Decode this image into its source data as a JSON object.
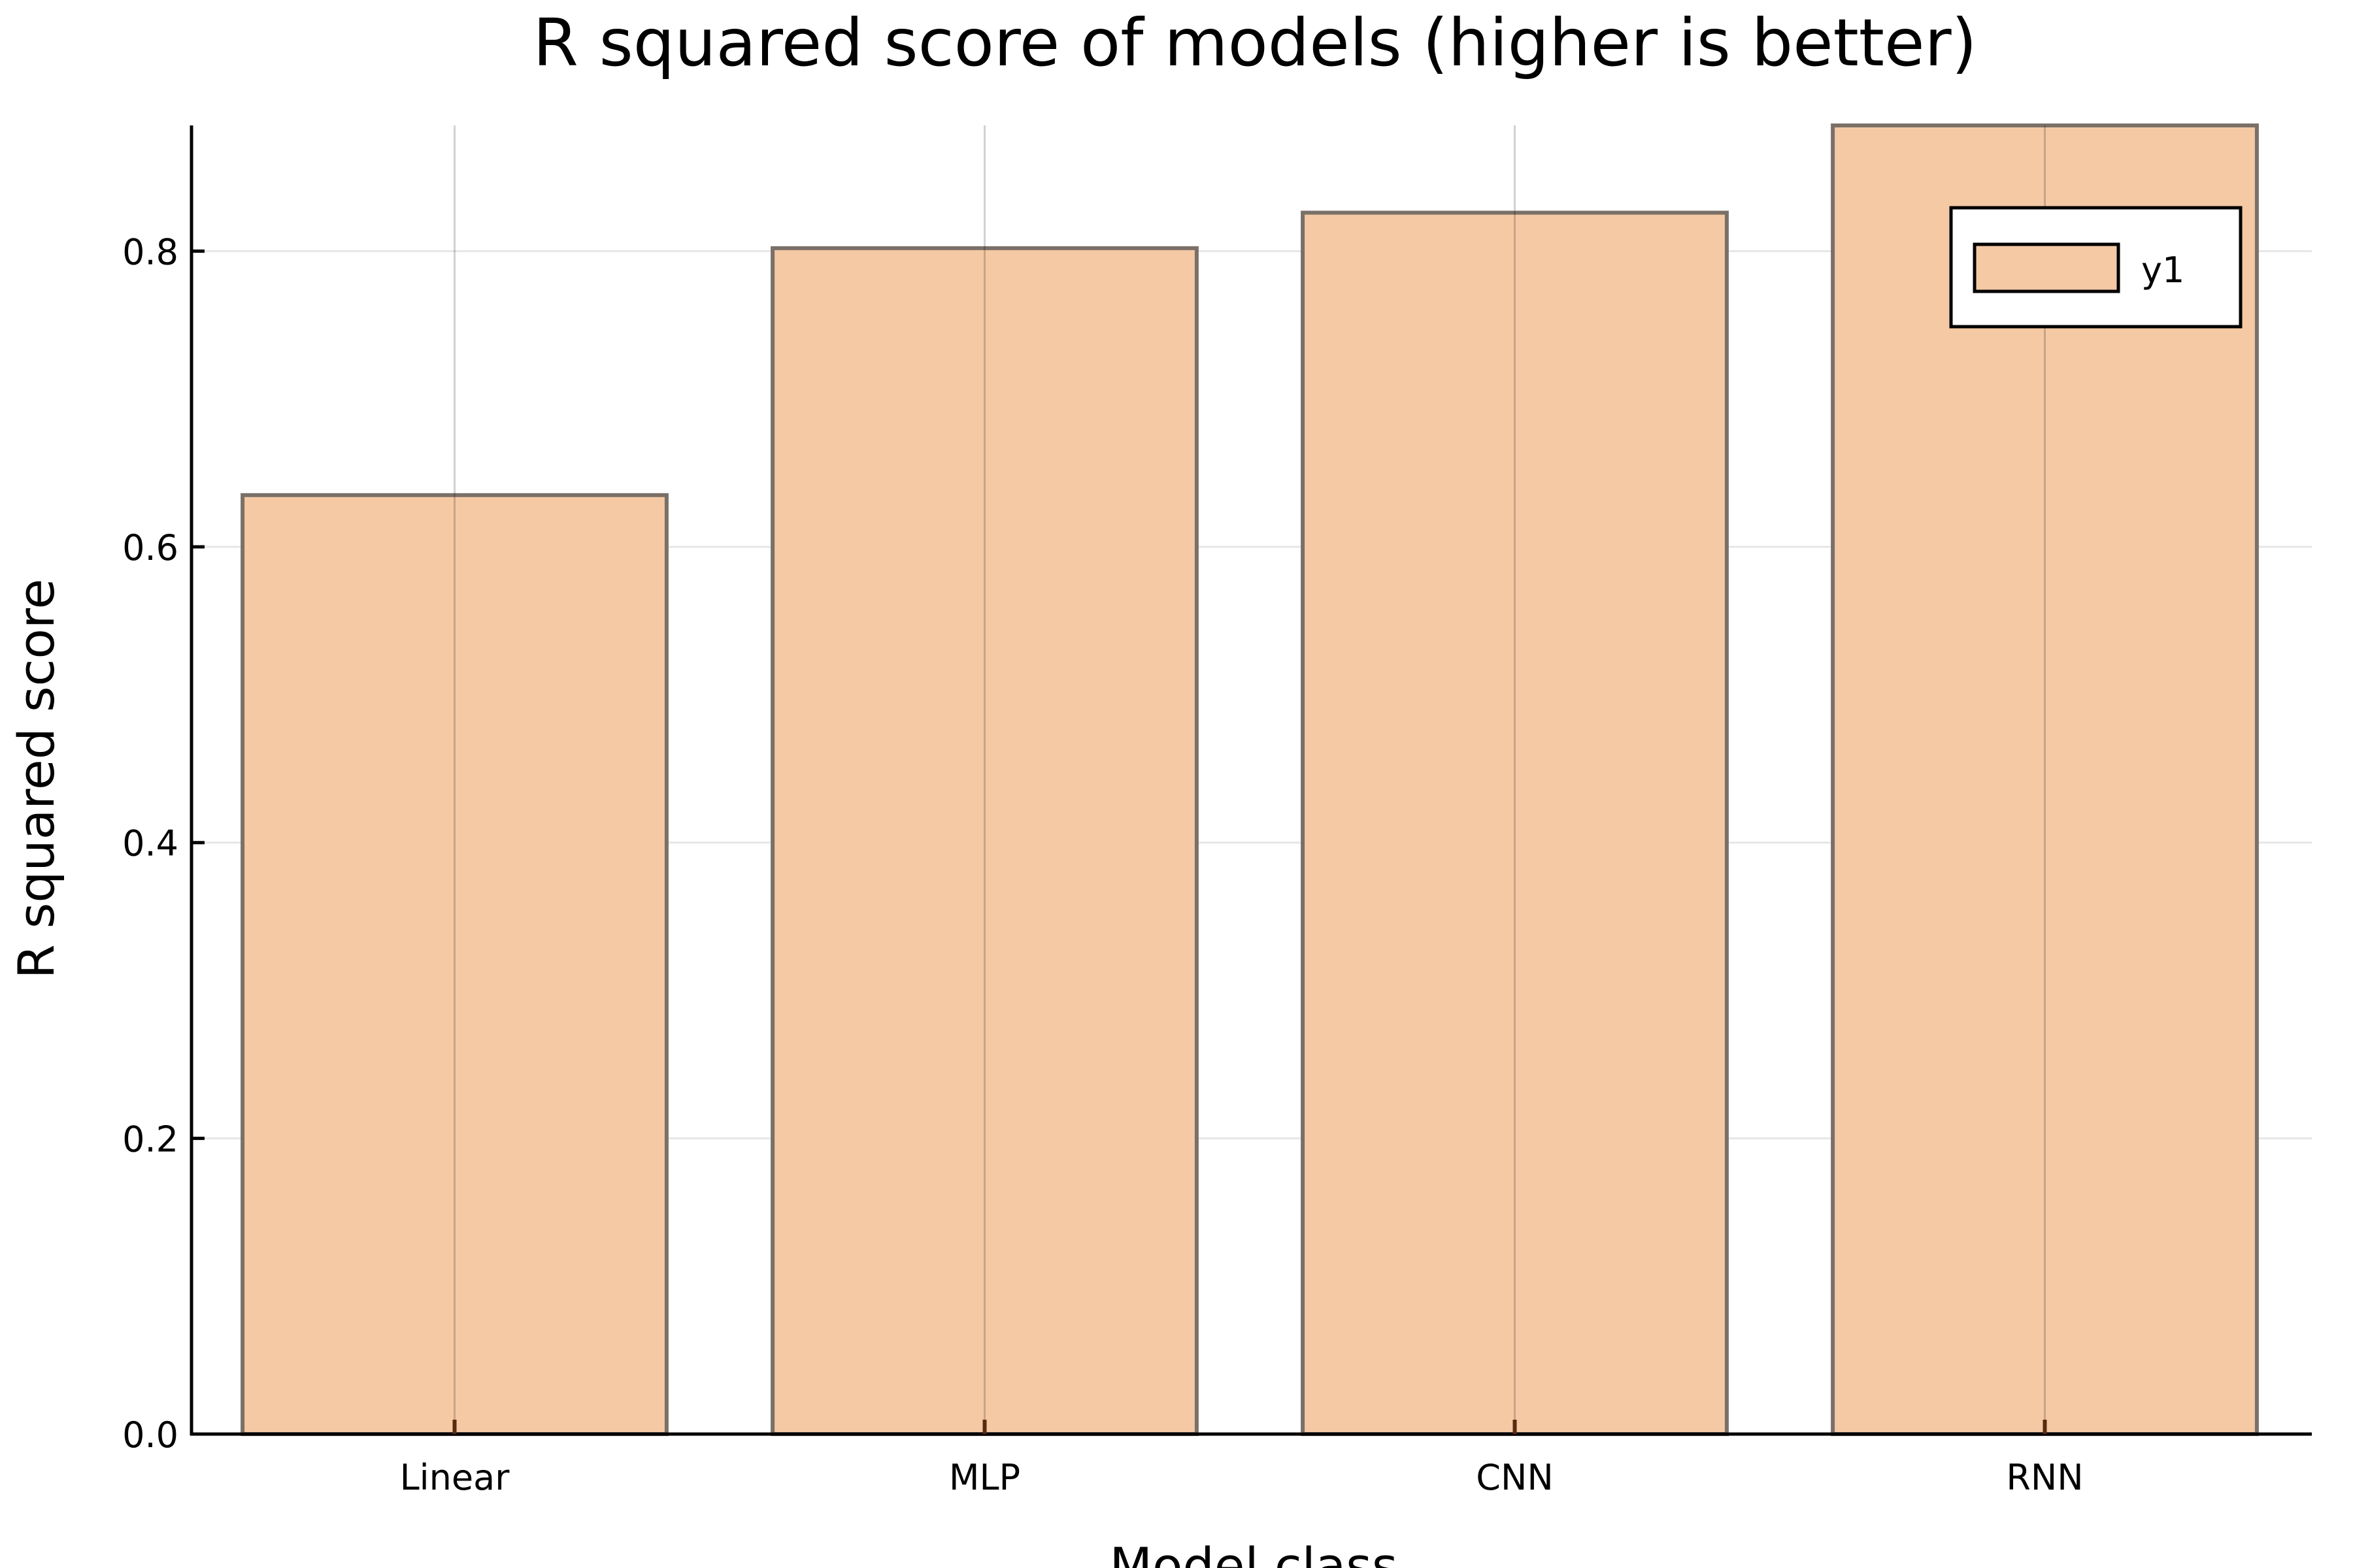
{
  "chart_data": {
    "type": "bar",
    "title": "R squared score of models (higher is better)",
    "xlabel": "Model class",
    "ylabel": "R squared score",
    "categories": [
      "Linear",
      "MLP",
      "CNN",
      "RNN"
    ],
    "series": [
      {
        "name": "y1",
        "values": [
          0.635,
          0.802,
          0.826,
          0.885
        ]
      }
    ],
    "ylim": [
      0,
      0.885
    ],
    "yticks": [
      0.0,
      0.2,
      0.4,
      0.6,
      0.8
    ],
    "ytick_labels": [
      "0.0",
      "0.2",
      "0.4",
      "0.6",
      "0.8"
    ],
    "grid": true,
    "legend_position": "top-right",
    "colors": {
      "bar_fill": "#f4c9a4",
      "bar_stroke": "#7a7068",
      "grid": "#e6e6e6",
      "axis": "#000000"
    }
  }
}
